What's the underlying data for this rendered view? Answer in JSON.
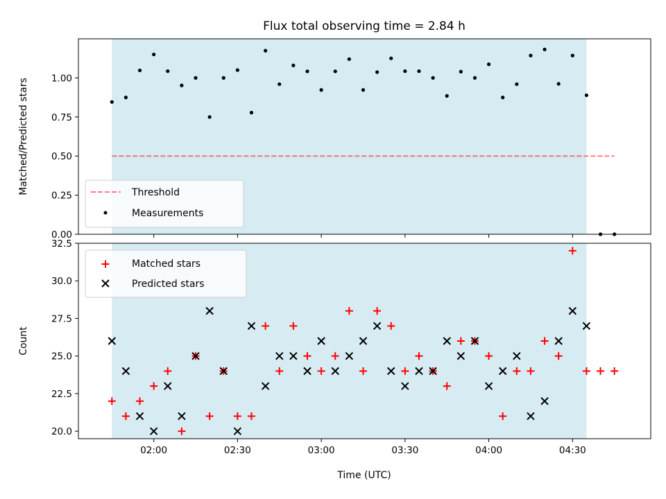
{
  "chart_data": {
    "type": "scatter",
    "title": "Flux total observing time = 2.84 h",
    "xlabel": "Time (UTC)",
    "x_tick_labels": [
      "02:00",
      "02:30",
      "03:00",
      "03:30",
      "04:00",
      "04:30"
    ],
    "x_tick_times": [
      "02:00",
      "02:30",
      "03:00",
      "03:30",
      "04:00",
      "04:30"
    ],
    "xlim": [
      "01:33",
      "04:58"
    ],
    "observing_window": [
      "01:45",
      "04:35"
    ],
    "colors": {
      "shade": "#add8e6",
      "threshold": "#ff0000",
      "matched": "#ff0000",
      "predicted": "#000000",
      "measurements": "#000000"
    },
    "x": [
      "01:45",
      "01:50",
      "01:55",
      "02:00",
      "02:05",
      "02:10",
      "02:15",
      "02:20",
      "02:25",
      "02:30",
      "02:35",
      "02:40",
      "02:45",
      "02:50",
      "02:55",
      "03:00",
      "03:05",
      "03:10",
      "03:15",
      "03:20",
      "03:25",
      "03:30",
      "03:35",
      "03:40",
      "03:45",
      "03:50",
      "03:55",
      "04:00",
      "04:05",
      "04:10",
      "04:15",
      "04:20",
      "04:25",
      "04:30",
      "04:35",
      "04:40",
      "04:45"
    ],
    "top": {
      "ylabel": "Matched/Predicted stars",
      "ylim": [
        0,
        1.25
      ],
      "yticks": [
        "0.00",
        "0.25",
        "0.50",
        "0.75",
        "1.00"
      ],
      "ytick_values": [
        0,
        0.25,
        0.5,
        0.75,
        1.0
      ],
      "threshold": 0.5,
      "threshold_range": [
        "01:45",
        "04:45"
      ],
      "legend": [
        "Threshold",
        "Measurements"
      ],
      "series": [
        {
          "name": "Measurements",
          "values": [
            0.846,
            0.875,
            1.048,
            1.15,
            1.043,
            0.952,
            1.0,
            0.75,
            1.0,
            1.05,
            0.778,
            1.174,
            0.96,
            1.08,
            1.042,
            0.923,
            1.042,
            1.12,
            0.923,
            1.037,
            1.125,
            1.043,
            1.043,
            1.0,
            0.885,
            1.04,
            1.0,
            1.087,
            0.875,
            0.96,
            1.143,
            1.182,
            0.962,
            1.143,
            0.889,
            0,
            0
          ]
        }
      ]
    },
    "bottom": {
      "ylabel": "Count",
      "ylim": [
        19.5,
        32.5
      ],
      "yticks": [
        "20.0",
        "22.5",
        "25.0",
        "27.5",
        "30.0",
        "32.5"
      ],
      "ytick_values": [
        20,
        22.5,
        25,
        27.5,
        30,
        32.5
      ],
      "legend": [
        "Matched stars",
        "Predicted stars"
      ],
      "series": [
        {
          "name": "Matched stars",
          "values": [
            22,
            21,
            22,
            23,
            24,
            20,
            25,
            21,
            24,
            21,
            21,
            27,
            24,
            27,
            25,
            24,
            25,
            28,
            24,
            28,
            27,
            24,
            25,
            24,
            23,
            26,
            26,
            25,
            21,
            24,
            24,
            26,
            25,
            32,
            24,
            24,
            24
          ]
        },
        {
          "name": "Predicted stars",
          "values": [
            26,
            24,
            21,
            20,
            23,
            21,
            25,
            28,
            24,
            20,
            27,
            23,
            25,
            25,
            24,
            26,
            24,
            25,
            26,
            27,
            24,
            23,
            24,
            24,
            26,
            25,
            26,
            23,
            24,
            25,
            21,
            22,
            26,
            28,
            27,
            null,
            null
          ]
        }
      ]
    }
  }
}
